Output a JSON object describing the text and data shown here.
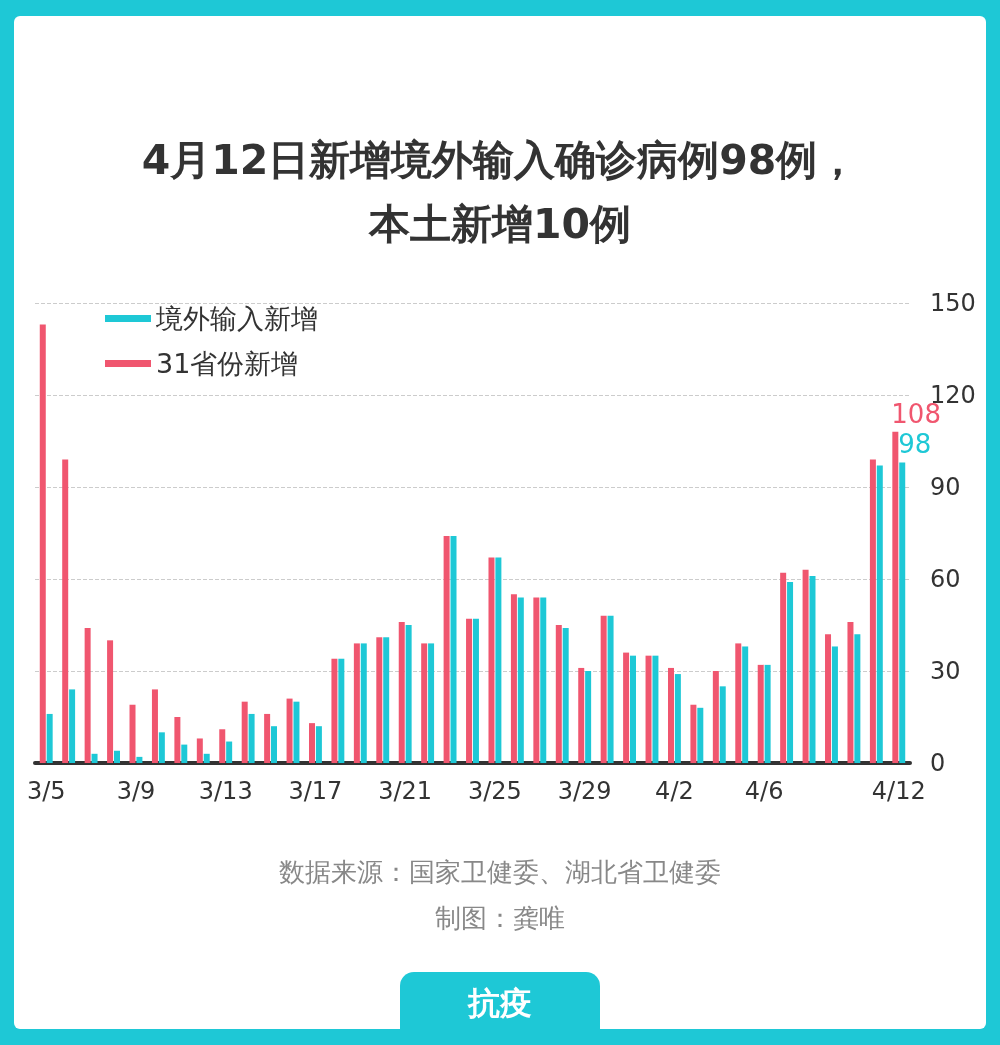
{
  "chart_data": {
    "type": "bar",
    "title": "4月12日新增境外输入确诊病例98例，本土新增10例",
    "categories": [
      "3/5",
      null,
      null,
      null,
      "3/9",
      null,
      null,
      null,
      "3/13",
      null,
      null,
      null,
      "3/17",
      null,
      null,
      null,
      "3/21",
      null,
      null,
      null,
      "3/25",
      null,
      null,
      null,
      "3/29",
      null,
      null,
      null,
      "4/2",
      null,
      null,
      null,
      "4/6",
      null,
      null,
      null,
      null,
      null,
      "4/12"
    ],
    "series": [
      {
        "name": "境外输入新增",
        "color": "#1ec8d6",
        "values": [
          16,
          24,
          3,
          4,
          2,
          10,
          6,
          3,
          7,
          16,
          12,
          20,
          12,
          34,
          39,
          41,
          45,
          39,
          74,
          47,
          67,
          54,
          54,
          44,
          30,
          48,
          35,
          35,
          29,
          18,
          25,
          38,
          32,
          59,
          61,
          38,
          42,
          97,
          98
        ],
        "value_labels": [
          null,
          null,
          null,
          null,
          null,
          null,
          null,
          null,
          null,
          null,
          null,
          null,
          null,
          null,
          null,
          null,
          null,
          null,
          null,
          null,
          null,
          null,
          null,
          null,
          null,
          null,
          null,
          null,
          null,
          null,
          null,
          null,
          null,
          null,
          null,
          null,
          null,
          null,
          "98"
        ]
      },
      {
        "name": "31省份新增",
        "color": "#f0566f",
        "values": [
          143,
          99,
          44,
          40,
          19,
          24,
          15,
          8,
          11,
          20,
          16,
          21,
          13,
          34,
          39,
          41,
          46,
          39,
          74,
          47,
          67,
          55,
          54,
          45,
          31,
          48,
          36,
          35,
          31,
          19,
          30,
          39,
          32,
          62,
          63,
          42,
          46,
          99,
          108
        ],
        "value_labels": [
          null,
          null,
          null,
          null,
          null,
          null,
          null,
          null,
          null,
          null,
          null,
          null,
          null,
          null,
          null,
          null,
          null,
          null,
          null,
          null,
          null,
          null,
          null,
          null,
          null,
          null,
          null,
          null,
          null,
          null,
          null,
          null,
          null,
          null,
          null,
          null,
          null,
          null,
          "108"
        ]
      }
    ],
    "ylim": [
      0,
      150
    ],
    "yticks": [
      0,
      30,
      60,
      90,
      120,
      150
    ],
    "grid": "y",
    "legend": "top left",
    "annotations": [
      "数据来源：国家卫健委、湖北省卫健委",
      "制图：龚唯",
      "抗疫"
    ]
  }
}
